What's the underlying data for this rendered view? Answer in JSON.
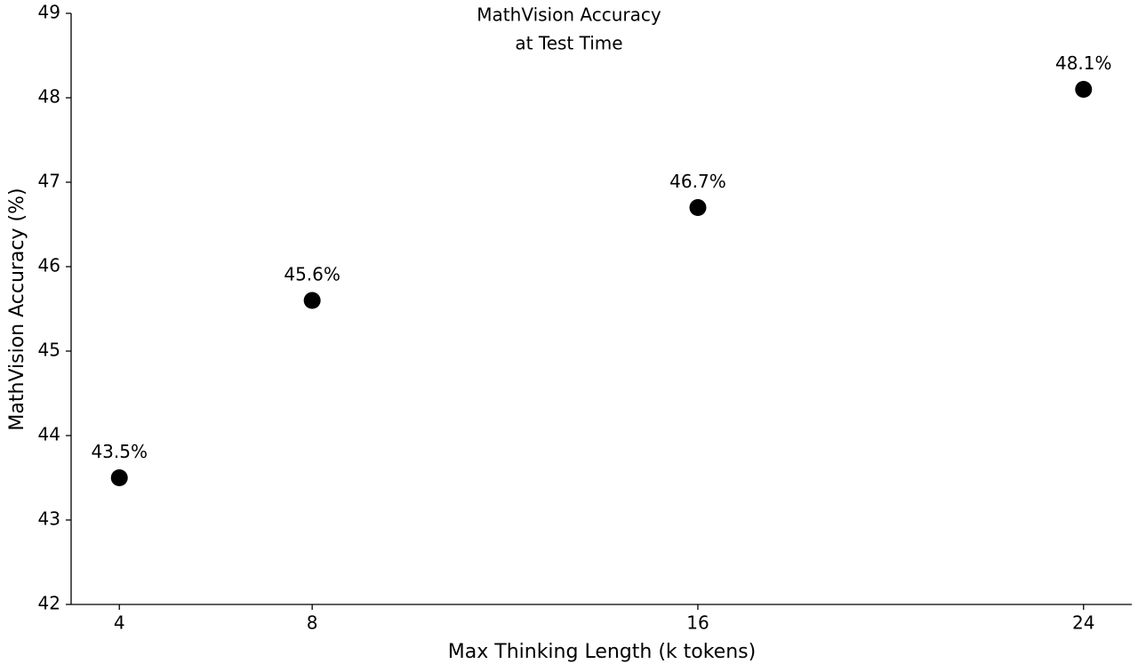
{
  "chart_data": {
    "type": "scatter",
    "title": [
      "MathVision Accuracy",
      "at Test Time"
    ],
    "x_label": "Max Thinking Length (k tokens)",
    "y_label": "MathVision Accuracy (%)",
    "x": [
      4,
      8,
      16,
      24
    ],
    "values": [
      43.5,
      45.6,
      46.7,
      48.1
    ],
    "value_labels": [
      "43.5%",
      "45.6%",
      "46.7%",
      "48.1%"
    ],
    "color": "#000000",
    "xlim": [
      3,
      25
    ],
    "xticks": [
      4,
      8,
      16,
      24
    ],
    "ylim": [
      42,
      49
    ],
    "yticks": [
      42,
      43,
      44,
      45,
      46,
      47,
      48,
      49
    ],
    "grid": false
  }
}
